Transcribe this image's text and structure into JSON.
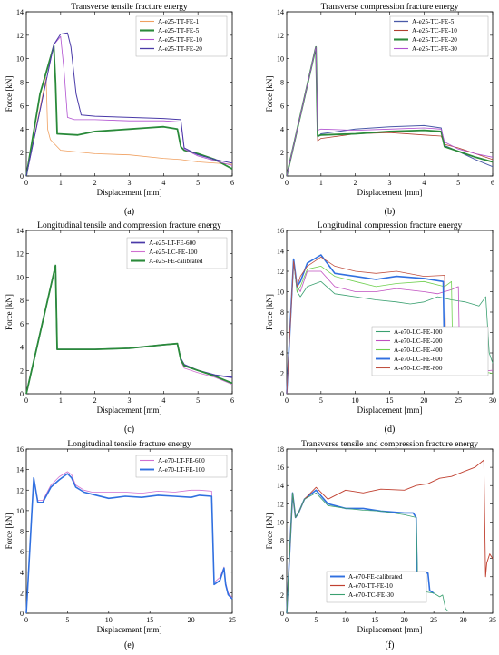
{
  "figure": {
    "panels": [
      {
        "caption": "(a)"
      },
      {
        "caption": "(b)"
      },
      {
        "caption": "(c)"
      },
      {
        "caption": "(d)"
      },
      {
        "caption": "(e)"
      },
      {
        "caption": "(f)"
      }
    ]
  },
  "chart_data": [
    {
      "type": "line",
      "id": "a",
      "title": "Transverse tensile fracture energy",
      "xlabel": "Displacement [mm]",
      "ylabel": "Force [kN]",
      "xlim": [
        0,
        6
      ],
      "ylim": [
        0,
        14
      ],
      "xticks": [
        0,
        1,
        2,
        3,
        4,
        5,
        6
      ],
      "yticks": [
        0,
        2,
        4,
        6,
        8,
        10,
        12,
        14
      ],
      "legend_position": "top-right",
      "grid": false,
      "series": [
        {
          "name": "A-e25-TT-FE-1",
          "color": "#f0a060",
          "width": 0.8,
          "x": [
            0,
            0.58,
            0.62,
            0.7,
            1,
            2,
            3,
            4,
            4.5,
            5,
            6
          ],
          "y": [
            0,
            8.4,
            4,
            3.1,
            2.2,
            1.9,
            1.8,
            1.5,
            1.4,
            1.2,
            1.0
          ]
        },
        {
          "name": "A-e25-TT-FE-5",
          "color": "#2a8a3a",
          "width": 1.8,
          "x": [
            0,
            0.4,
            0.8,
            0.85,
            0.9,
            1.5,
            2,
            3,
            3.5,
            4,
            4.4,
            4.5,
            4.6,
            5,
            5.5,
            6
          ],
          "y": [
            0,
            7,
            11.1,
            8,
            3.6,
            3.5,
            3.8,
            4.0,
            4.1,
            4.2,
            4.0,
            2.5,
            2.2,
            1.9,
            1.4,
            0.6
          ]
        },
        {
          "name": "A-e25-TT-FE-10",
          "color": "#b050d0",
          "width": 0.8,
          "x": [
            0,
            0.8,
            1.0,
            1.1,
            1.2,
            1.4,
            2,
            3,
            4,
            4.5,
            4.6,
            5,
            5.5,
            6
          ],
          "y": [
            0,
            11.2,
            11.9,
            9,
            5,
            4.8,
            4.8,
            4.7,
            4.7,
            4.6,
            2.3,
            1.7,
            1.3,
            0.9
          ]
        },
        {
          "name": "A-e25-TT-FE-20",
          "color": "#4a3aa8",
          "width": 1.0,
          "x": [
            0,
            0.8,
            1.0,
            1.2,
            1.3,
            1.45,
            1.6,
            2,
            3,
            4,
            4.5,
            4.6,
            5,
            5.5,
            6
          ],
          "y": [
            0,
            11.2,
            12.1,
            12.2,
            11,
            7,
            5.2,
            5.1,
            5.0,
            4.9,
            4.8,
            2.4,
            1.8,
            1.4,
            1.1
          ]
        }
      ]
    },
    {
      "type": "line",
      "id": "b",
      "title": "Transverse compression fracture energy",
      "xlabel": "Displacement [mm]",
      "ylabel": "Force [kN]",
      "xlim": [
        0,
        6
      ],
      "ylim": [
        0,
        14
      ],
      "xticks": [
        0,
        1,
        2,
        3,
        4,
        5,
        6
      ],
      "yticks": [
        0,
        2,
        4,
        6,
        8,
        10,
        12,
        14
      ],
      "legend_position": "top-right",
      "grid": false,
      "series": [
        {
          "name": "A-e25-TC-FE-5",
          "color": "#4a5aa8",
          "width": 1.0,
          "x": [
            0,
            0.85,
            0.9,
            1,
            2,
            3,
            4,
            4.5,
            4.6,
            5,
            5.5,
            6
          ],
          "y": [
            0,
            11.0,
            3.3,
            3.6,
            4.0,
            4.2,
            4.3,
            4.1,
            2.6,
            2.1,
            1.4,
            0.8
          ]
        },
        {
          "name": "A-e25-TC-FE-10",
          "color": "#b04030",
          "width": 0.8,
          "x": [
            0,
            0.85,
            0.9,
            1,
            2,
            3,
            4,
            4.5,
            4.6,
            5,
            5.5,
            6
          ],
          "y": [
            0,
            11.0,
            3.0,
            3.2,
            3.6,
            3.7,
            3.5,
            3.4,
            2.7,
            2.4,
            1.9,
            1.4
          ]
        },
        {
          "name": "A-e25-TC-FE-20",
          "color": "#2a8a3a",
          "width": 1.8,
          "x": [
            0,
            0.85,
            0.9,
            1,
            2,
            3,
            4,
            4.5,
            4.6,
            5,
            5.5,
            6
          ],
          "y": [
            0,
            11.0,
            3.4,
            3.5,
            3.6,
            3.8,
            3.9,
            3.8,
            2.5,
            2.1,
            1.6,
            1.2
          ]
        },
        {
          "name": "A-e25-TC-FE-30",
          "color": "#b050d0",
          "width": 0.8,
          "x": [
            0,
            0.85,
            0.9,
            1,
            2,
            3,
            4,
            4.5,
            4.6,
            5,
            5.5,
            6
          ],
          "y": [
            0,
            11.0,
            3.9,
            4.0,
            3.9,
            4.0,
            4.1,
            4.0,
            2.9,
            2.3,
            1.9,
            1.6
          ]
        }
      ]
    },
    {
      "type": "line",
      "id": "c",
      "title": "Longitudinal tensile and compression fracture energy",
      "xlabel": "Displacement [mm]",
      "ylabel": "Force [kN]",
      "xlim": [
        0,
        6
      ],
      "ylim": [
        0,
        14
      ],
      "xticks": [
        0,
        1,
        2,
        3,
        4,
        5,
        6
      ],
      "yticks": [
        0,
        2,
        4,
        6,
        8,
        10,
        12,
        14
      ],
      "legend_position": "top-right",
      "grid": false,
      "series": [
        {
          "name": "A-e25-LT-FE-600",
          "color": "#4a3aa8",
          "width": 1.4,
          "x": [
            0,
            0.85,
            0.9,
            1,
            2,
            3,
            4,
            4.4,
            4.5,
            4.6,
            5,
            5.5,
            6
          ],
          "y": [
            0,
            11.0,
            3.8,
            3.8,
            3.8,
            3.9,
            4.2,
            4.3,
            3.0,
            2.5,
            2.0,
            1.6,
            1.4
          ]
        },
        {
          "name": "A-e25-LC-FE-100",
          "color": "#d070d0",
          "width": 0.8,
          "x": [
            0,
            0.85,
            0.9,
            1,
            2,
            3,
            4,
            4.4,
            4.5,
            4.6,
            5,
            5.5,
            6
          ],
          "y": [
            0,
            11.0,
            3.8,
            3.8,
            3.8,
            3.9,
            4.2,
            4.3,
            2.8,
            2.2,
            1.8,
            1.4,
            0.8
          ]
        },
        {
          "name": "A-e25-FE-calibrated",
          "color": "#2a8a3a",
          "width": 1.8,
          "x": [
            0,
            0.85,
            0.9,
            1,
            2,
            3,
            4,
            4.4,
            4.5,
            4.6,
            5,
            5.5,
            6
          ],
          "y": [
            0,
            11.0,
            3.8,
            3.8,
            3.8,
            3.9,
            4.2,
            4.3,
            2.9,
            2.4,
            2.0,
            1.5,
            0.9
          ]
        }
      ]
    },
    {
      "type": "line",
      "id": "d",
      "title": "Longitudinal compression fracture energy",
      "xlabel": "Displacement [mm]",
      "ylabel": "Force [kN]",
      "xlim": [
        0,
        30
      ],
      "ylim": [
        0,
        16
      ],
      "xticks": [
        0,
        5,
        10,
        15,
        20,
        25,
        30
      ],
      "yticks": [
        0,
        2,
        4,
        6,
        8,
        10,
        12,
        14,
        16
      ],
      "legend_position": "bottom-right",
      "grid": false,
      "series": [
        {
          "name": "A-e70-LC-FE-100",
          "color": "#3aa070",
          "width": 0.8,
          "x": [
            0,
            1,
            1.5,
            2,
            3,
            5,
            7,
            10,
            13,
            16,
            18,
            20,
            22,
            24,
            26,
            28,
            29,
            29.5,
            30
          ],
          "y": [
            0,
            13,
            10,
            9.5,
            10.5,
            11,
            9.8,
            9.5,
            9.2,
            9.0,
            8.8,
            9.0,
            9.5,
            9.2,
            9.0,
            8.6,
            9.5,
            4,
            3
          ]
        },
        {
          "name": "A-e70-LC-FE-200",
          "color": "#c050c0",
          "width": 0.8,
          "x": [
            0,
            1,
            1.5,
            2,
            3,
            5,
            7,
            10,
            13,
            16,
            20,
            22,
            24,
            25,
            25.2,
            26,
            28,
            30
          ],
          "y": [
            0,
            13,
            10.5,
            10,
            12,
            12,
            10.5,
            10,
            10,
            10.3,
            10,
            9.8,
            10.2,
            10.5,
            3,
            2.5,
            2.2,
            2.3
          ]
        },
        {
          "name": "A-e70-LC-FE-400",
          "color": "#70d050",
          "width": 0.8,
          "x": [
            0,
            1,
            1.5,
            2,
            3,
            5,
            7,
            10,
            13,
            16,
            20,
            23,
            24,
            24.2,
            26,
            28,
            30
          ],
          "y": [
            0,
            13,
            10,
            10.5,
            12.2,
            12.5,
            11.5,
            11,
            10.5,
            10.8,
            11,
            10.5,
            11,
            3,
            2.5,
            2.2,
            2.0
          ]
        },
        {
          "name": "A-e70-LC-FE-600",
          "color": "#3070e0",
          "width": 1.6,
          "x": [
            0,
            1,
            1.5,
            2,
            3,
            5,
            7,
            10,
            13,
            16,
            20,
            22.8,
            23,
            23.5,
            24.5,
            25
          ],
          "y": [
            0,
            13.2,
            10.5,
            11,
            12.8,
            13.6,
            11.8,
            11.5,
            11.2,
            11.5,
            11.3,
            11,
            3,
            2.2,
            2.5,
            2.0
          ]
        },
        {
          "name": "A-e70-LC-FE-800",
          "color": "#c05040",
          "width": 0.8,
          "x": [
            0,
            1,
            1.5,
            2,
            3,
            5,
            7,
            10,
            13,
            16,
            20,
            23,
            23.2,
            24,
            25
          ],
          "y": [
            0,
            13,
            10.5,
            11.5,
            12.5,
            13.4,
            12.5,
            12,
            11.8,
            12,
            11.5,
            11.6,
            3,
            2.5,
            2.2
          ]
        }
      ]
    },
    {
      "type": "line",
      "id": "e",
      "title": "Longitudinal tensile fracture energy",
      "xlabel": "Displacement [mm]",
      "ylabel": "Force [kN]",
      "xlim": [
        0,
        25
      ],
      "ylim": [
        0,
        16
      ],
      "xticks": [
        0,
        5,
        10,
        15,
        20,
        25
      ],
      "yticks": [
        0,
        2,
        4,
        6,
        8,
        10,
        12,
        14,
        16
      ],
      "legend_position": "top-right",
      "grid": false,
      "series": [
        {
          "name": "A-e70-LT-FE-600",
          "color": "#d070d0",
          "width": 0.8,
          "x": [
            0,
            0.9,
            1.4,
            2,
            3,
            4,
            5,
            5.5,
            6,
            7,
            8,
            10,
            12,
            14,
            16,
            18,
            20,
            21,
            22.5,
            22.8,
            23.5,
            24,
            24.2,
            24.5,
            25
          ],
          "y": [
            0,
            13.2,
            11,
            11,
            12.5,
            13.3,
            13.8,
            13.5,
            12.5,
            12.0,
            11.8,
            11.8,
            11.8,
            11.7,
            11.9,
            11.8,
            12.0,
            12.0,
            11.9,
            3.0,
            3.5,
            4.5,
            3.0,
            2.0,
            1.5
          ]
        },
        {
          "name": "A-e70-LT-FE-100",
          "color": "#3070e0",
          "width": 1.6,
          "x": [
            0,
            0.9,
            1.4,
            2,
            3,
            4,
            5,
            5.5,
            6,
            7,
            8,
            10,
            12,
            14,
            16,
            18,
            20,
            21,
            22.5,
            22.8,
            23.5,
            24,
            24.2,
            24.5,
            25
          ],
          "y": [
            0,
            13.2,
            10.8,
            10.8,
            12.3,
            13.0,
            13.6,
            13.2,
            12.3,
            11.8,
            11.6,
            11.2,
            11.4,
            11.3,
            11.5,
            11.4,
            11.3,
            11.5,
            11.4,
            2.8,
            3.2,
            4.4,
            2.8,
            1.8,
            1.4
          ]
        }
      ]
    },
    {
      "type": "line",
      "id": "f",
      "title": "Transverse tensile and compression fracture energy",
      "xlabel": "Displacement [mm]",
      "ylabel": "Force [kN]",
      "xlim": [
        0,
        35
      ],
      "ylim": [
        0,
        18
      ],
      "xticks": [
        0,
        5,
        10,
        15,
        20,
        25,
        30,
        35
      ],
      "yticks": [
        0,
        2,
        4,
        6,
        8,
        10,
        12,
        14,
        16,
        18
      ],
      "legend_position": "bottom-center",
      "grid": false,
      "series": [
        {
          "name": "A-e70-FE-calibrated",
          "color": "#3070e0",
          "width": 1.6,
          "x": [
            0,
            1,
            1.5,
            2,
            3,
            5,
            7,
            10,
            13,
            16,
            20,
            21.5,
            22,
            22.2,
            23,
            24,
            24.3,
            25
          ],
          "y": [
            0,
            13.2,
            10.5,
            11,
            12.5,
            13.5,
            12,
            11.5,
            11.5,
            11.2,
            11,
            11,
            10.5,
            3.0,
            4.5,
            4.4,
            2.5,
            2.2
          ]
        },
        {
          "name": "A-e70-TT-FE-10",
          "color": "#c04030",
          "width": 0.9,
          "x": [
            0,
            1,
            1.5,
            2,
            3,
            5,
            7,
            10,
            13,
            16,
            20,
            22,
            24,
            26,
            28,
            30,
            32,
            33.5,
            33.8,
            34,
            34.5,
            35
          ],
          "y": [
            0,
            13.2,
            10.5,
            11,
            12.5,
            13.8,
            12.5,
            13.5,
            13.2,
            13.6,
            13.5,
            14,
            14.2,
            14.8,
            15,
            15.5,
            16,
            16.8,
            4,
            5.5,
            6.5,
            6
          ]
        },
        {
          "name": "A-e70-TC-FE-30",
          "color": "#3aa070",
          "width": 0.8,
          "x": [
            0,
            1,
            1.5,
            2,
            3,
            5,
            7,
            10,
            13,
            16,
            20,
            22,
            22.3,
            24,
            25,
            26,
            26.5,
            27,
            27.5
          ],
          "y": [
            0,
            13.2,
            10.5,
            11,
            12.5,
            13.2,
            11.8,
            11.5,
            11.3,
            11.2,
            10.8,
            10.5,
            2.5,
            2.3,
            2.2,
            1.8,
            2.0,
            0.5,
            0.2
          ]
        }
      ]
    }
  ]
}
